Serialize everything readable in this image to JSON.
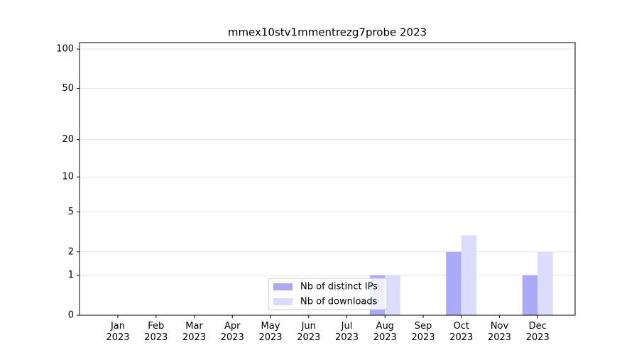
{
  "chart_data": {
    "type": "bar",
    "title": "mmex10stv1mmentrezg7probe 2023",
    "categories": [
      "Jan\n2023",
      "Feb\n2023",
      "Mar\n2023",
      "Apr\n2023",
      "May\n2023",
      "Jun\n2023",
      "Jul\n2023",
      "Aug\n2023",
      "Sep\n2023",
      "Oct\n2023",
      "Nov\n2023",
      "Dec\n2023"
    ],
    "series": [
      {
        "name": "Nb of distinct IPs",
        "color": "#aaaaf8",
        "values": [
          0,
          0,
          0,
          0,
          0,
          0,
          0,
          1,
          0,
          2,
          0,
          1
        ]
      },
      {
        "name": "Nb of downloads",
        "color": "#dcdcfc",
        "values": [
          0,
          0,
          0,
          0,
          0,
          0,
          0,
          1,
          0,
          3,
          0,
          2
        ]
      }
    ],
    "yscale": "log1p",
    "ylim": [
      0,
      112
    ],
    "yticks": [
      0,
      1,
      2,
      5,
      10,
      20,
      50,
      100
    ],
    "grid": true,
    "legend": "lower center"
  }
}
